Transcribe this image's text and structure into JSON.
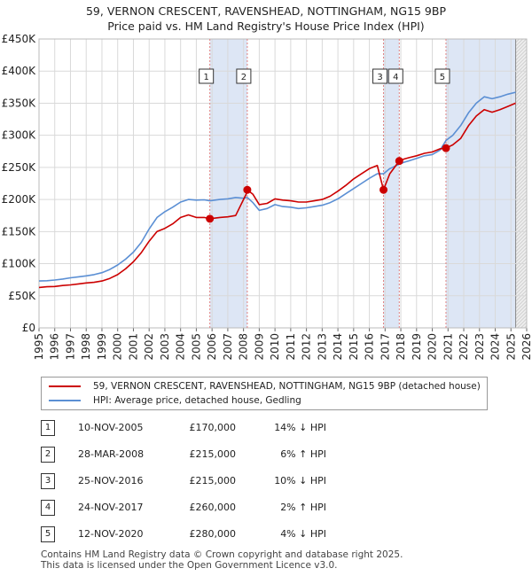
{
  "title_line1": "59, VERNON CRESCENT, RAVENSHEAD, NOTTINGHAM, NG15 9BP",
  "title_line2": "Price paid vs. HM Land Registry's House Price Index (HPI)",
  "colors": {
    "property": "#cc0000",
    "hpi": "#5b8fd4",
    "shade": "#dde6f5",
    "grid": "#d9d9d9"
  },
  "chart_data": {
    "type": "line",
    "xlim": [
      1995,
      2026
    ],
    "ylim": [
      0,
      450000
    ],
    "y_ticks": [
      {
        "value": 0,
        "label": "£0"
      },
      {
        "value": 50000,
        "label": "£50K"
      },
      {
        "value": 100000,
        "label": "£100K"
      },
      {
        "value": 150000,
        "label": "£150K"
      },
      {
        "value": 200000,
        "label": "£200K"
      },
      {
        "value": 250000,
        "label": "£250K"
      },
      {
        "value": 300000,
        "label": "£300K"
      },
      {
        "value": 350000,
        "label": "£350K"
      },
      {
        "value": 400000,
        "label": "£400K"
      },
      {
        "value": 450000,
        "label": "£450K"
      }
    ],
    "x_ticks": [
      "1995",
      "1996",
      "1997",
      "1998",
      "1999",
      "2000",
      "2001",
      "2002",
      "2003",
      "2004",
      "2005",
      "2006",
      "2007",
      "2008",
      "2009",
      "2010",
      "2011",
      "2012",
      "2013",
      "2014",
      "2015",
      "2016",
      "2017",
      "2018",
      "2019",
      "2020",
      "2021",
      "2022",
      "2023",
      "2024",
      "2025",
      "2026"
    ],
    "data_end": 2025.3,
    "shaded_ranges": [
      [
        2005.86,
        2008.24
      ],
      [
        2016.9,
        2017.9
      ],
      [
        2020.87,
        2025.3
      ]
    ],
    "series": [
      {
        "name": "59, VERNON CRESCENT, RAVENSHEAD, NOTTINGHAM, NG15 9BP (detached house)",
        "color": "#cc0000",
        "x": [
          1995,
          1995.5,
          1996,
          1996.5,
          1997,
          1997.5,
          1998,
          1998.5,
          1999,
          1999.5,
          2000,
          2000.5,
          2001,
          2001.5,
          2002,
          2002.5,
          2003,
          2003.5,
          2004,
          2004.5,
          2005,
          2005.5,
          2005.86,
          2006.5,
          2007,
          2007.5,
          2008.2,
          2008.24,
          2008.6,
          2009,
          2009.5,
          2010,
          2010.5,
          2011,
          2011.5,
          2012,
          2012.5,
          2013,
          2013.5,
          2014,
          2014.5,
          2015,
          2015.5,
          2016,
          2016.5,
          2016.9,
          2017.3,
          2017.9,
          2018.2,
          2018.5,
          2019,
          2019.5,
          2020,
          2020.5,
          2020.87,
          2021.3,
          2021.8,
          2022.3,
          2022.8,
          2023.3,
          2023.8,
          2024.3,
          2024.8,
          2025.3
        ],
        "y": [
          63000,
          64000,
          64500,
          66000,
          67000,
          68500,
          70000,
          71000,
          73000,
          77000,
          83000,
          92000,
          103000,
          117000,
          135000,
          150000,
          155000,
          162000,
          172000,
          176000,
          172000,
          172000,
          170000,
          172000,
          173000,
          175000,
          210000,
          215000,
          208000,
          192000,
          194000,
          201000,
          199000,
          198000,
          196000,
          196000,
          198000,
          200000,
          205000,
          213000,
          222000,
          232000,
          240000,
          248000,
          253000,
          215000,
          240000,
          260000,
          263000,
          265000,
          268000,
          272000,
          274000,
          279000,
          280000,
          285000,
          295000,
          315000,
          330000,
          340000,
          336000,
          340000,
          345000,
          350000
        ]
      },
      {
        "name": "HPI: Average price, detached house, Gedling",
        "color": "#5b8fd4",
        "x": [
          1995,
          1995.5,
          1996,
          1996.5,
          1997,
          1997.5,
          1998,
          1998.5,
          1999,
          1999.5,
          2000,
          2000.5,
          2001,
          2001.5,
          2002,
          2002.5,
          2003,
          2003.5,
          2004,
          2004.5,
          2005,
          2005.5,
          2005.86,
          2006.5,
          2007,
          2007.5,
          2008,
          2008.24,
          2008.6,
          2009,
          2009.5,
          2010,
          2010.5,
          2011,
          2011.5,
          2012,
          2012.5,
          2013,
          2013.5,
          2014,
          2014.5,
          2015,
          2015.5,
          2016,
          2016.5,
          2016.9,
          2017.3,
          2017.9,
          2018.2,
          2018.5,
          2019,
          2019.5,
          2020,
          2020.5,
          2020.87,
          2021.3,
          2021.8,
          2022.3,
          2022.8,
          2023.3,
          2023.8,
          2024.3,
          2024.8,
          2025.3
        ],
        "y": [
          73000,
          73500,
          74500,
          76000,
          78000,
          79500,
          81000,
          83000,
          86000,
          91000,
          98000,
          107000,
          118000,
          133000,
          154000,
          172000,
          181000,
          188000,
          196000,
          200000,
          199000,
          199500,
          198000,
          200000,
          201000,
          203000,
          202000,
          203000,
          195000,
          183000,
          186000,
          192000,
          189000,
          188000,
          186000,
          187000,
          189000,
          191000,
          195000,
          201000,
          209000,
          217000,
          225000,
          233000,
          240000,
          240000,
          248000,
          255000,
          258000,
          260000,
          264000,
          268000,
          270000,
          277000,
          292000,
          300000,
          315000,
          335000,
          350000,
          360000,
          357000,
          360000,
          364000,
          367000
        ]
      }
    ],
    "transactions": [
      {
        "num": "1",
        "x": 2005.86,
        "y": 170000,
        "date": "10-NOV-2005",
        "price": "£170,000",
        "hpi": "14% ↓ HPI"
      },
      {
        "num": "2",
        "x": 2008.24,
        "y": 215000,
        "date": "28-MAR-2008",
        "price": "£215,000",
        "hpi": "6% ↑ HPI"
      },
      {
        "num": "3",
        "x": 2016.9,
        "y": 215000,
        "date": "25-NOV-2016",
        "price": "£215,000",
        "hpi": "10% ↓ HPI"
      },
      {
        "num": "4",
        "x": 2017.9,
        "y": 260000,
        "date": "24-NOV-2017",
        "price": "£260,000",
        "hpi": "2% ↑ HPI"
      },
      {
        "num": "5",
        "x": 2020.87,
        "y": 280000,
        "date": "12-NOV-2020",
        "price": "£280,000",
        "hpi": "4% ↓ HPI"
      }
    ]
  },
  "legend": {
    "property_label": "59, VERNON CRESCENT, RAVENSHEAD, NOTTINGHAM, NG15 9BP (detached house)",
    "hpi_label": "HPI: Average price, detached house, Gedling"
  },
  "footer": {
    "line1": "Contains HM Land Registry data © Crown copyright and database right 2025.",
    "line2": "This data is licensed under the Open Government Licence v3.0."
  }
}
